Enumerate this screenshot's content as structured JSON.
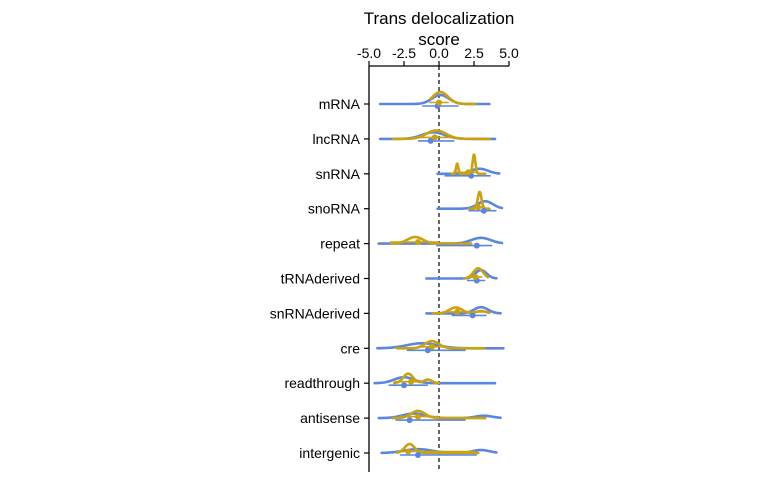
{
  "colors": {
    "series_a": "#c9a20e",
    "series_b": "#5b86e0",
    "axis": "#000000"
  },
  "chart_data": {
    "type": "ridgeline",
    "title_lines": [
      "Trans delocalization",
      "score"
    ],
    "x_axis_position": "top",
    "xlim": [
      -5,
      5
    ],
    "x_ticks": [
      -5,
      -2.5,
      0,
      2.5,
      5
    ],
    "x_tick_labels": [
      "-5.0",
      "-2.5",
      "0.0",
      "2.5",
      "5.0"
    ],
    "reference_line": {
      "x": 0,
      "style": "dashed"
    },
    "categories": [
      "mRNA",
      "lncRNA",
      "snRNA",
      "snoRNA",
      "repeat",
      "tRNAderived",
      "snRNAderived",
      "cre",
      "readthrough",
      "antisense",
      "intergenic"
    ],
    "series": [
      {
        "color_key": "series_a",
        "rows": [
          {
            "range": [
              -0.6,
              2.6
            ],
            "peaks": [
              {
                "mu": 0.1,
                "sd": 0.55,
                "amp": 1.0
              }
            ],
            "point": 0.0,
            "interval": [
              -0.7,
              0.7
            ]
          },
          {
            "range": [
              -3.3,
              3.6
            ],
            "peaks": [
              {
                "mu": -0.2,
                "sd": 0.7,
                "amp": 0.7
              }
            ],
            "point": -0.3,
            "interval": [
              -1.4,
              1.0
            ]
          },
          {
            "range": [
              0.9,
              3.3
            ],
            "peaks": [
              {
                "mu": 2.5,
                "sd": 0.1,
                "amp": 1.6
              },
              {
                "mu": 1.3,
                "sd": 0.08,
                "amp": 0.85
              }
            ],
            "point": 2.1,
            "interval": [
              1.0,
              2.7
            ]
          },
          {
            "range": [
              2.2,
              3.6
            ],
            "peaks": [
              {
                "mu": 2.9,
                "sd": 0.13,
                "amp": 1.4
              }
            ],
            "point": 2.8,
            "interval": [
              2.4,
              3.3
            ]
          },
          {
            "range": [
              -3.4,
              2.3
            ],
            "peaks": [
              {
                "mu": -1.7,
                "sd": 0.55,
                "amp": 0.55
              }
            ],
            "point": -1.5,
            "interval": [
              -3.5,
              0.0
            ]
          },
          {
            "range": [
              1.8,
              3.5
            ],
            "peaks": [
              {
                "mu": 2.8,
                "sd": 0.35,
                "amp": 0.85
              }
            ],
            "point": 2.6,
            "interval": [
              2.2,
              3.1
            ]
          },
          {
            "range": [
              -0.4,
              3.6
            ],
            "peaks": [
              {
                "mu": 1.2,
                "sd": 0.45,
                "amp": 0.5
              },
              {
                "mu": 3.0,
                "sd": 0.35,
                "amp": 0.2
              }
            ],
            "point": 1.3,
            "interval": [
              0.3,
              3.2
            ]
          },
          {
            "range": [
              -3.0,
              3.2
            ],
            "peaks": [
              {
                "mu": -0.5,
                "sd": 0.5,
                "amp": 0.6
              }
            ],
            "point": -0.5,
            "interval": [
              -1.4,
              0.3
            ]
          },
          {
            "range": [
              -3.2,
              0.0
            ],
            "peaks": [
              {
                "mu": -2.2,
                "sd": 0.35,
                "amp": 0.8
              },
              {
                "mu": -0.8,
                "sd": 0.3,
                "amp": 0.3
              }
            ],
            "point": -2.0,
            "interval": [
              -3.2,
              -1.0
            ]
          },
          {
            "range": [
              -3.3,
              3.3
            ],
            "peaks": [
              {
                "mu": -1.5,
                "sd": 0.5,
                "amp": 0.6
              }
            ],
            "point": -1.5,
            "interval": [
              -2.8,
              0.0
            ]
          },
          {
            "range": [
              -3.0,
              2.8
            ],
            "peaks": [
              {
                "mu": -2.1,
                "sd": 0.35,
                "amp": 0.75
              }
            ],
            "point": -2.2,
            "interval": [
              -2.8,
              2.6
            ]
          }
        ]
      },
      {
        "color_key": "series_b",
        "rows": [
          {
            "range": [
              -4.2,
              3.6
            ],
            "peaks": [
              {
                "mu": 0.1,
                "sd": 0.6,
                "amp": 0.75
              }
            ],
            "point": -0.1,
            "interval": [
              -1.2,
              1.4
            ]
          },
          {
            "range": [
              -4.2,
              4.0
            ],
            "peaks": [
              {
                "mu": -0.4,
                "sd": 0.8,
                "amp": 0.55
              }
            ],
            "point": -0.6,
            "interval": [
              -1.5,
              1.1
            ]
          },
          {
            "range": [
              -0.1,
              4.3
            ],
            "peaks": [
              {
                "mu": 2.9,
                "sd": 0.6,
                "amp": 0.42
              }
            ],
            "point": 2.3,
            "interval": [
              0.4,
              3.7
            ]
          },
          {
            "range": [
              -0.1,
              4.5
            ],
            "peaks": [
              {
                "mu": 3.3,
                "sd": 0.55,
                "amp": 0.62
              }
            ],
            "point": 3.2,
            "interval": [
              2.1,
              4.1
            ]
          },
          {
            "range": [
              -4.3,
              4.5
            ],
            "peaks": [
              {
                "mu": 3.0,
                "sd": 0.7,
                "amp": 0.48
              }
            ],
            "point": 2.7,
            "interval": [
              -0.2,
              3.8
            ]
          },
          {
            "range": [
              -0.9,
              4.1
            ],
            "peaks": [
              {
                "mu": 3.0,
                "sd": 0.4,
                "amp": 0.7
              }
            ],
            "point": 2.7,
            "interval": [
              2.0,
              3.3
            ]
          },
          {
            "range": [
              -0.9,
              4.4
            ],
            "peaks": [
              {
                "mu": 3.0,
                "sd": 0.5,
                "amp": 0.52
              }
            ],
            "point": 2.4,
            "interval": [
              0.9,
              3.4
            ]
          },
          {
            "range": [
              -4.4,
              4.6
            ],
            "peaks": [
              {
                "mu": -1.2,
                "sd": 1.1,
                "amp": 0.42
              }
            ],
            "point": -0.8,
            "interval": [
              -2.3,
              1.9
            ]
          },
          {
            "range": [
              -4.6,
              4.0
            ],
            "peaks": [
              {
                "mu": -2.5,
                "sd": 0.7,
                "amp": 0.5
              }
            ],
            "point": -2.5,
            "interval": [
              -3.6,
              -0.8
            ]
          },
          {
            "range": [
              -4.3,
              4.4
            ],
            "peaks": [
              {
                "mu": -1.8,
                "sd": 0.8,
                "amp": 0.38
              },
              {
                "mu": 3.2,
                "sd": 0.6,
                "amp": 0.2
              }
            ],
            "point": -2.1,
            "interval": [
              -3.1,
              1.9
            ]
          },
          {
            "range": [
              -4.1,
              4.1
            ],
            "peaks": [
              {
                "mu": -1.5,
                "sd": 1.0,
                "amp": 0.32
              },
              {
                "mu": 3.0,
                "sd": 0.6,
                "amp": 0.25
              }
            ],
            "point": -1.5,
            "interval": [
              -2.8,
              2.7
            ]
          }
        ]
      }
    ]
  }
}
